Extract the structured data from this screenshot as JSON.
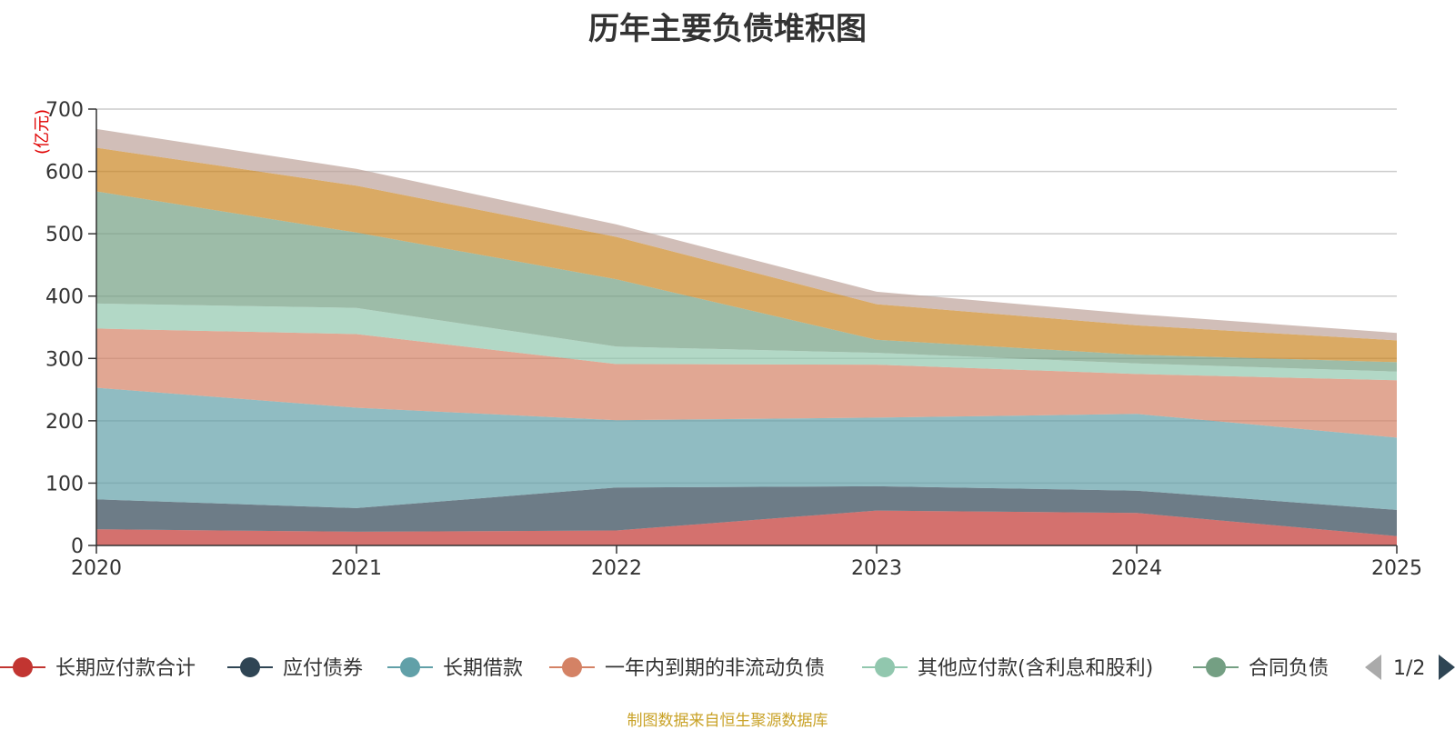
{
  "chart_data": {
    "type": "area",
    "stacked": true,
    "title": "历年主要负债堆积图",
    "unit_label": "(亿元)",
    "x": [
      "2020",
      "2021",
      "2022",
      "2023",
      "2024",
      "2025"
    ],
    "ylim": [
      0,
      700
    ],
    "yticks": [
      0,
      100,
      200,
      300,
      400,
      500,
      600,
      700
    ],
    "grid": true,
    "series": [
      {
        "name": "长期应付款合计",
        "color": "#c23531",
        "values": [
          26,
          22,
          24,
          56,
          52,
          15
        ]
      },
      {
        "name": "应付债券",
        "color": "#2f4554",
        "values": [
          48,
          38,
          69,
          39,
          36,
          42
        ]
      },
      {
        "name": "长期借款",
        "color": "#61a0a8",
        "values": [
          179,
          161,
          108,
          110,
          123,
          116
        ]
      },
      {
        "name": "一年内到期的非流动负债",
        "color": "#d48265",
        "values": [
          95,
          118,
          90,
          85,
          64,
          92
        ]
      },
      {
        "name": "其他应付款(含利息和股利)",
        "color": "#91c7ae",
        "values": [
          40,
          42,
          28,
          19,
          17,
          14
        ]
      },
      {
        "name": "合同负债",
        "color": "#749f83",
        "values": [
          180,
          121,
          108,
          21,
          14,
          15
        ]
      },
      {
        "name": "",
        "color": "#ca8622",
        "values": [
          70,
          75,
          68,
          57,
          47,
          35
        ]
      },
      {
        "name": "",
        "color": "#bda29a",
        "values": [
          30,
          27,
          20,
          20,
          18,
          12
        ]
      }
    ]
  },
  "legend": {
    "page_indicator": "1/2",
    "prev_icon": "triangle-left-icon",
    "next_icon": "triangle-right-icon"
  },
  "source_note": "制图数据来自恒生聚源数据库"
}
